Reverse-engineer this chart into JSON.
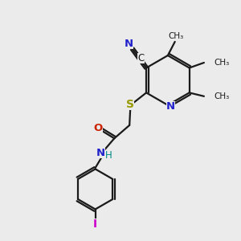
{
  "bg_color": "#ebebeb",
  "bond_color": "#1a1a1a",
  "N_color": "#2222cc",
  "O_color": "#cc2200",
  "S_color": "#999900",
  "I_color": "#cc00cc",
  "C_color": "#1a1a1a",
  "H_color": "#008888",
  "figsize": [
    3.0,
    3.0
  ],
  "dpi": 100,
  "xlim": [
    0,
    10
  ],
  "ylim": [
    0,
    10
  ]
}
